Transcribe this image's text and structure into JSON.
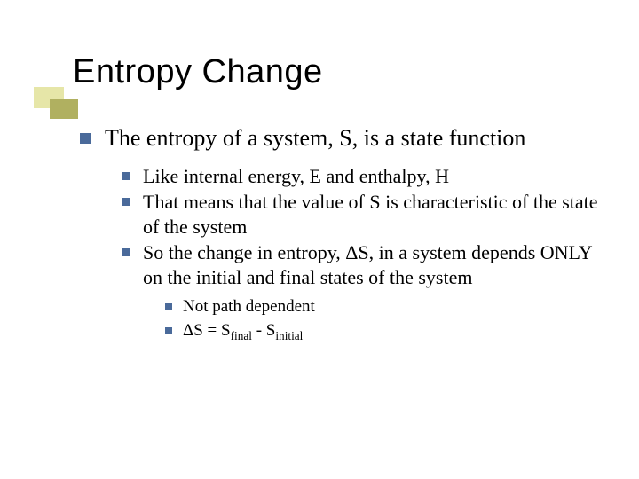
{
  "title": "Entropy Change",
  "colors": {
    "bullet": "#4a6a9a",
    "deco_back": "#e6e6a8",
    "deco_front": "#b0b060",
    "text": "#000000",
    "background": "#ffffff"
  },
  "fonts": {
    "title_family": "Arial",
    "title_size_pt": 38,
    "body_family": "Times New Roman",
    "lvl1_size_pt": 26,
    "lvl2_size_pt": 22,
    "lvl3_size_pt": 19
  },
  "lvl1": {
    "text": "The entropy of a system, S, is a state function"
  },
  "lvl2": [
    {
      "text": "Like internal energy, E and enthalpy, H"
    },
    {
      "text": "That means that the value of S is characteristic of the state of the system"
    },
    {
      "text": "So the change in entropy, ΔS, in a system depends ONLY on the initial and final states of the system"
    }
  ],
  "lvl3": [
    {
      "text": "Not path dependent"
    },
    {
      "html": "ΔS = S<span class=\"sub\">final</span> - S<span class=\"sub\">initial</span>"
    }
  ]
}
